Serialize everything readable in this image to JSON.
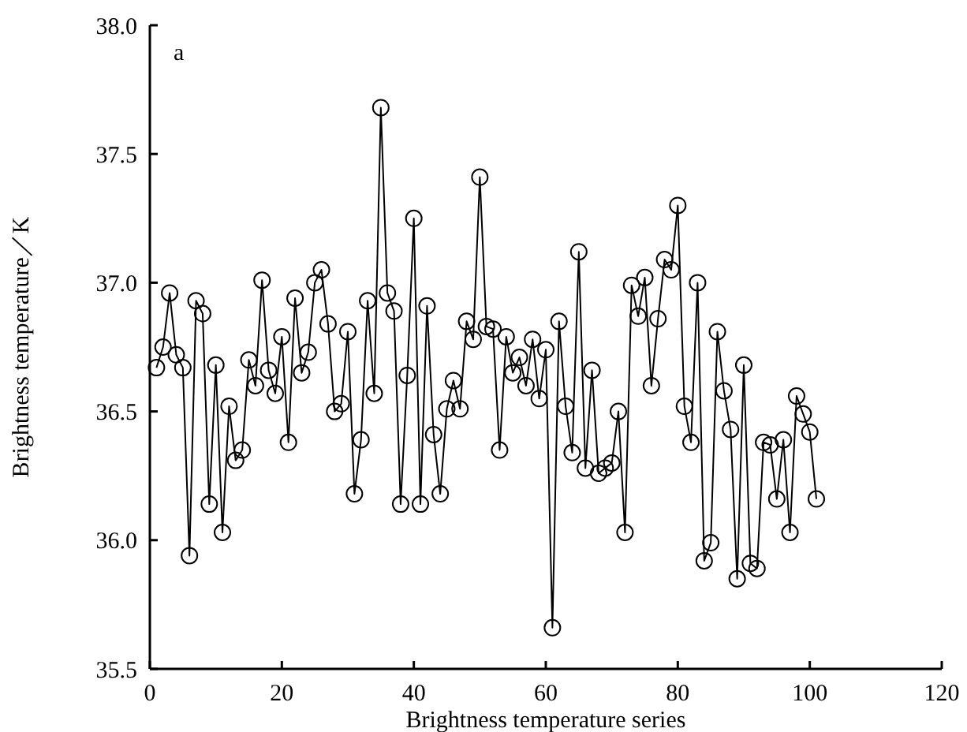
{
  "chart_data": {
    "type": "line",
    "xlabel": "Brightness temperature series",
    "ylabel": "Brightness temperature／K",
    "annotations": [
      "a"
    ],
    "x": [
      1,
      2,
      3,
      4,
      5,
      6,
      7,
      8,
      9,
      10,
      11,
      12,
      13,
      14,
      15,
      16,
      17,
      18,
      19,
      20,
      21,
      22,
      23,
      24,
      25,
      26,
      27,
      28,
      29,
      30,
      31,
      32,
      33,
      34,
      35,
      36,
      37,
      38,
      39,
      40,
      41,
      42,
      43,
      44,
      45,
      46,
      47,
      48,
      49,
      50,
      51,
      52,
      53,
      54,
      55,
      56,
      57,
      58,
      59,
      60,
      61,
      62,
      63,
      64,
      65,
      66,
      67,
      68,
      69,
      70,
      71,
      72,
      73,
      74,
      75,
      76,
      77,
      78,
      79,
      80,
      81,
      82,
      83,
      84,
      85,
      86,
      87,
      88,
      89,
      90,
      91,
      92,
      93,
      94,
      95,
      96,
      97,
      98,
      99,
      100,
      101
    ],
    "series": [
      {
        "color": "#000000",
        "values": [
          36.67,
          36.75,
          36.96,
          36.72,
          36.67,
          35.94,
          36.93,
          36.88,
          36.14,
          36.68,
          36.03,
          36.52,
          36.31,
          36.35,
          36.7,
          36.6,
          37.01,
          36.66,
          36.57,
          36.79,
          36.38,
          36.94,
          36.65,
          36.73,
          37.0,
          37.05,
          36.84,
          36.5,
          36.53,
          36.81,
          36.18,
          36.39,
          36.93,
          36.57,
          37.68,
          36.96,
          36.89,
          36.14,
          36.64,
          37.25,
          36.14,
          36.91,
          36.41,
          36.18,
          36.51,
          36.62,
          36.51,
          36.85,
          36.78,
          37.41,
          36.83,
          36.82,
          36.35,
          36.79,
          36.65,
          36.71,
          36.6,
          36.78,
          36.55,
          36.74,
          35.66,
          36.85,
          36.52,
          36.34,
          37.12,
          36.28,
          36.66,
          36.26,
          36.28,
          36.3,
          36.5,
          36.03,
          36.99,
          36.87,
          37.02,
          36.6,
          36.86,
          37.09,
          37.05,
          37.3,
          36.52,
          36.38,
          37.0,
          35.92,
          35.99,
          36.81,
          36.58,
          36.43,
          35.85,
          36.68,
          35.91,
          35.89,
          36.38,
          36.37,
          36.16,
          36.39,
          36.03,
          36.56,
          36.49,
          36.42,
          36.16
        ]
      }
    ],
    "xlim": [
      0,
      120
    ],
    "xticks": [
      0,
      20,
      40,
      60,
      80,
      100,
      120
    ],
    "ylim": [
      35.5,
      38
    ],
    "yticks": [
      35.5,
      {
        "value": 36,
        "label": "36.0"
      },
      36.5,
      {
        "value": 37,
        "label": "37.0"
      },
      37.5,
      {
        "value": 38,
        "label": "38.0"
      }
    ],
    "marker": "circle",
    "line_style": "solid",
    "grid": false
  }
}
